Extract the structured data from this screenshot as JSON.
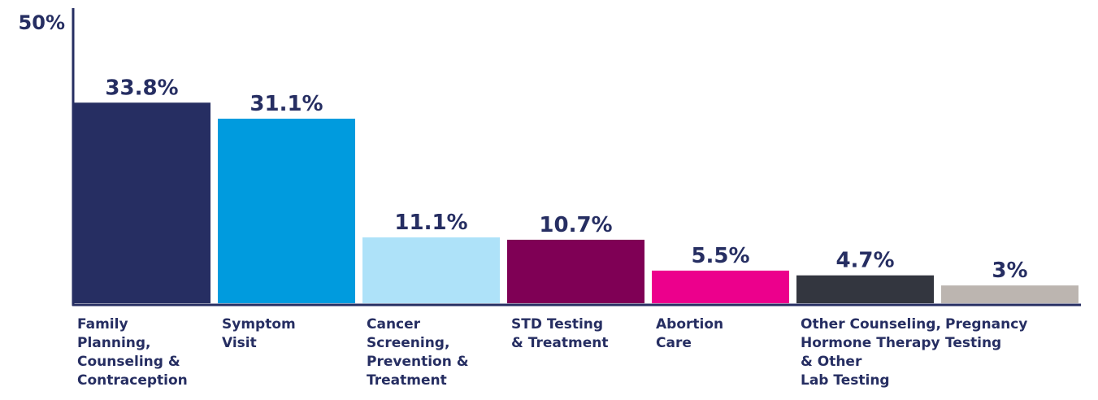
{
  "chart_data": {
    "type": "bar",
    "categories": [
      "Family\nPlanning,\nCounseling &\nContraception",
      "Symptom\nVisit",
      "Cancer\nScreening,\nPrevention &\nTreatment",
      "STD Testing\n& Treatment",
      "Abortion\nCare",
      "Other Counseling,\nHormone Therapy\n& Other\nLab Testing",
      "Pregnancy\nTesting"
    ],
    "values": [
      33.8,
      31.1,
      11.1,
      10.7,
      5.5,
      4.7,
      3
    ],
    "value_labels": [
      "33.8%",
      "31.1%",
      "11.1%",
      "10.7%",
      "5.5%",
      "4.7%",
      "3%"
    ],
    "colors": [
      "#262e62",
      "#009bde",
      "#aee2f9",
      "#7f0055",
      "#ec008c",
      "#33363f",
      "#bcb5b0"
    ],
    "ylim": [
      0,
      50
    ],
    "yticks": [
      {
        "value": 50,
        "label": "50%"
      }
    ],
    "grid": false
  }
}
